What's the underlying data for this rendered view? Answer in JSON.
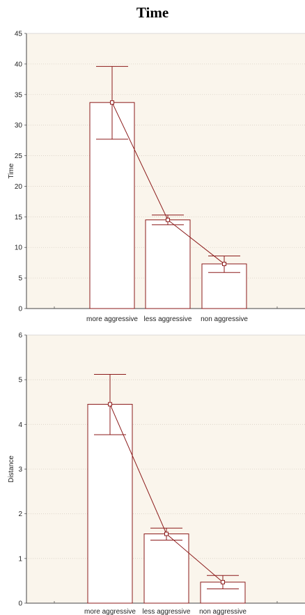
{
  "title": "Time",
  "chart_data": [
    {
      "type": "bar",
      "ylabel": "Time",
      "categories": [
        "more aggressive",
        "less aggressive",
        "non aggressive"
      ],
      "values": [
        33.7,
        14.5,
        7.3
      ],
      "error_low": [
        27.7,
        13.7,
        5.9
      ],
      "error_high": [
        39.6,
        15.3,
        8.6
      ],
      "ylim": [
        0,
        45
      ],
      "yticks": [
        "0",
        "5",
        "10",
        "15",
        "20",
        "25",
        "30",
        "35",
        "40",
        "45"
      ],
      "grid": true,
      "bar_color": "#8b1a1a",
      "background": "#faf5ec"
    },
    {
      "type": "bar",
      "ylabel": "Distance",
      "categories": [
        "more aggressive",
        "less aggressive",
        "non aggressive"
      ],
      "values": [
        4.45,
        1.55,
        0.47
      ],
      "error_low": [
        3.77,
        1.41,
        0.32
      ],
      "error_high": [
        5.12,
        1.68,
        0.62
      ],
      "ylim": [
        0,
        6
      ],
      "yticks": [
        "0",
        "1",
        "2",
        "3",
        "4",
        "5",
        "6"
      ],
      "grid": true,
      "bar_color": "#8b1a1a",
      "background": "#faf5ec"
    }
  ]
}
